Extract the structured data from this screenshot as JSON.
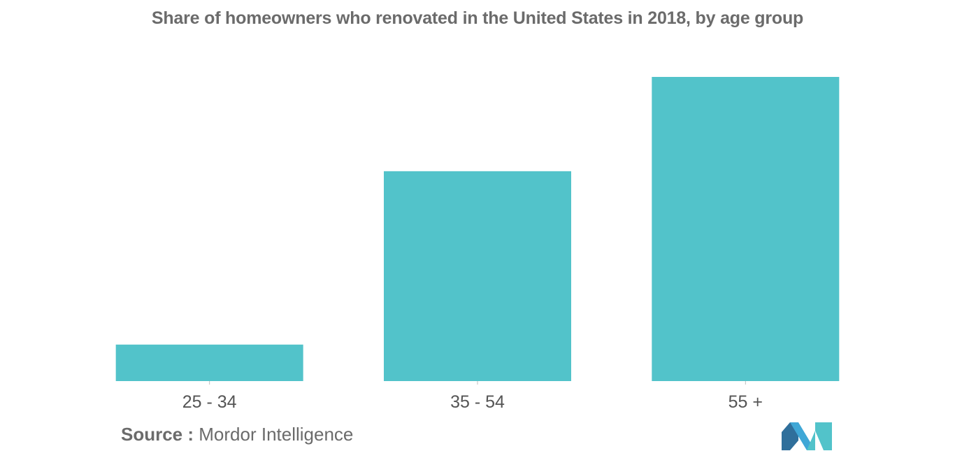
{
  "chart_data": {
    "type": "bar",
    "title": "Share of homeowners who renovated in the United States in 2018, by age group",
    "categories": [
      "25 - 34",
      "35 - 54",
      "55 +"
    ],
    "values": [
      12,
      69,
      100
    ],
    "xlabel": "",
    "ylabel": "",
    "ylim": [
      0,
      100
    ],
    "grid": false,
    "legend": "none",
    "bar_color": "#52c3ca",
    "axis_color": "#bfbfbf",
    "text_color": "#555555"
  },
  "source": {
    "label": "Source :",
    "text": "Mordor Intelligence"
  },
  "logo": {
    "icon": "mordor-intelligence-logo-icon",
    "colors": [
      "#2f6f9b",
      "#3fa7d6",
      "#52c3ca"
    ]
  }
}
